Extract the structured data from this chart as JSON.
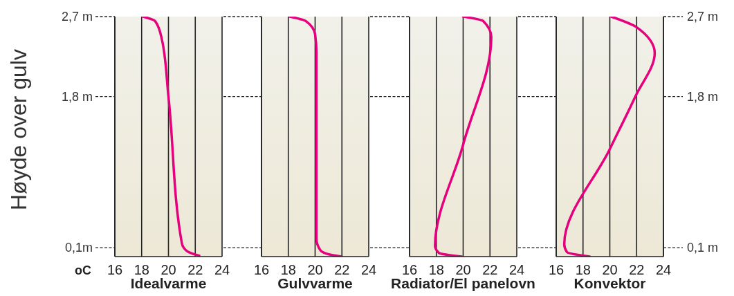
{
  "chart_data": [
    {
      "type": "line",
      "title": "Idealvarme",
      "ylabel": "Høyde over gulv",
      "xlabel": "oC",
      "xlim": [
        16,
        24
      ],
      "xticks": [
        16,
        18,
        20,
        22,
        24
      ],
      "ylim": [
        0,
        2.7
      ],
      "yticks": [
        {
          "value": 0.1,
          "label": "0,1m"
        },
        {
          "value": 1.8,
          "label": "1,8 m"
        },
        {
          "value": 2.7,
          "label": "2,7 m"
        }
      ],
      "grid": "x",
      "line_style": "solid",
      "series": [
        {
          "color": "#e6007e",
          "x": [
            18.1,
            19.0,
            19.5,
            20.0,
            21.0,
            21.4,
            22.3
          ],
          "values": [
            2.7,
            2.65,
            2.45,
            1.8,
            0.15,
            0.06,
            0.01
          ]
        }
      ]
    },
    {
      "type": "line",
      "title": "Gulvvarme",
      "xlim": [
        16,
        24
      ],
      "xticks": [
        16,
        18,
        20,
        22,
        24
      ],
      "ylim": [
        0,
        2.7
      ],
      "yticks": [
        {
          "value": 0.1,
          "label": null
        },
        {
          "value": 1.8,
          "label": null
        },
        {
          "value": 2.7,
          "label": null
        }
      ],
      "tick_labels": "x",
      "grid": "x",
      "line_style": "solid",
      "series": [
        {
          "color": "#e6007e",
          "x": [
            18.1,
            19.3,
            20.0,
            20.1,
            20.1,
            20.4,
            21.2,
            22.0
          ],
          "values": [
            2.7,
            2.65,
            2.5,
            2.3,
            0.2,
            0.07,
            0.02,
            0.0
          ]
        }
      ]
    },
    {
      "type": "line",
      "title": "Radiator/El panelovn",
      "xlim": [
        16,
        24
      ],
      "xticks": [
        16,
        18,
        20,
        22,
        24
      ],
      "ylim": [
        0,
        2.7
      ],
      "yticks": [
        {
          "value": 0.1,
          "label": null
        },
        {
          "value": 1.8,
          "label": null
        },
        {
          "value": 2.7,
          "label": null
        }
      ],
      "tick_labels": "x",
      "grid": "x",
      "line_style": "solid",
      "series": [
        {
          "color": "#e6007e",
          "x": [
            20.0,
            21.5,
            22.1,
            20.0,
            17.9,
            18.2,
            19.9
          ],
          "values": [
            2.7,
            2.65,
            2.47,
            1.26,
            0.12,
            0.04,
            0.0
          ]
        }
      ]
    },
    {
      "type": "line",
      "title": "Konvektor",
      "xlim": [
        16,
        24
      ],
      "xticks": [
        16,
        18,
        20,
        22,
        24
      ],
      "y2lim": [
        0,
        2.7
      ],
      "y2ticks": [
        {
          "value": 0.1,
          "label": "0,1 m"
        },
        {
          "value": 1.8,
          "label": "1,8 m"
        },
        {
          "value": 2.7,
          "label": "2,7 m"
        }
      ],
      "grid": "x",
      "line_style": "solid",
      "series": [
        {
          "color": "#e6007e",
          "axis": "y2",
          "x": [
            20.1,
            22.0,
            23.35,
            21.9,
            20.0,
            16.6,
            16.8,
            18.5
          ],
          "values": [
            2.7,
            2.58,
            2.29,
            1.8,
            1.21,
            0.14,
            0.05,
            0.0
          ]
        }
      ]
    }
  ]
}
